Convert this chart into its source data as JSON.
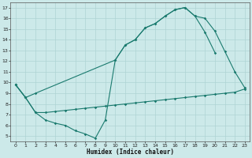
{
  "xlabel": "Humidex (Indice chaleur)",
  "bg_color": "#cce9e9",
  "line_color": "#1a7a6e",
  "grid_color": "#aed4d4",
  "xlim": [
    -0.5,
    23.5
  ],
  "ylim": [
    4.5,
    17.5
  ],
  "xticks": [
    0,
    1,
    2,
    3,
    4,
    5,
    6,
    7,
    8,
    9,
    10,
    11,
    12,
    13,
    14,
    15,
    16,
    17,
    18,
    19,
    20,
    21,
    22,
    23
  ],
  "yticks": [
    5,
    6,
    7,
    8,
    9,
    10,
    11,
    12,
    13,
    14,
    15,
    16,
    17
  ],
  "line1_x": [
    0,
    1,
    2,
    3,
    4,
    5,
    6,
    7,
    8,
    9,
    10,
    11,
    12,
    13,
    14,
    15,
    16,
    17,
    18,
    19,
    20
  ],
  "line1_y": [
    9.8,
    8.6,
    7.2,
    6.5,
    6.2,
    6.0,
    5.5,
    5.2,
    4.8,
    6.5,
    12.1,
    13.5,
    14.0,
    15.1,
    15.5,
    16.2,
    16.8,
    17.0,
    16.2,
    14.7,
    12.8
  ],
  "line2_x": [
    0,
    1,
    2,
    10,
    11,
    12,
    13,
    14,
    15,
    16,
    17,
    18,
    19,
    20,
    21,
    22,
    23
  ],
  "line2_y": [
    9.8,
    8.6,
    9.0,
    12.1,
    13.5,
    14.0,
    15.1,
    15.5,
    16.2,
    16.8,
    17.0,
    16.2,
    16.0,
    14.8,
    12.9,
    11.0,
    9.5
  ],
  "line3_x": [
    0,
    1,
    2,
    3,
    4,
    5,
    6,
    7,
    8,
    9,
    10,
    11,
    12,
    13,
    14,
    15,
    16,
    17,
    18,
    19,
    20,
    21,
    22,
    23
  ],
  "line3_y": [
    9.8,
    8.6,
    7.2,
    7.2,
    7.3,
    7.4,
    7.5,
    7.6,
    7.7,
    7.8,
    7.9,
    8.0,
    8.1,
    8.2,
    8.3,
    8.4,
    8.5,
    8.6,
    8.7,
    8.8,
    8.9,
    9.0,
    9.1,
    9.4
  ]
}
